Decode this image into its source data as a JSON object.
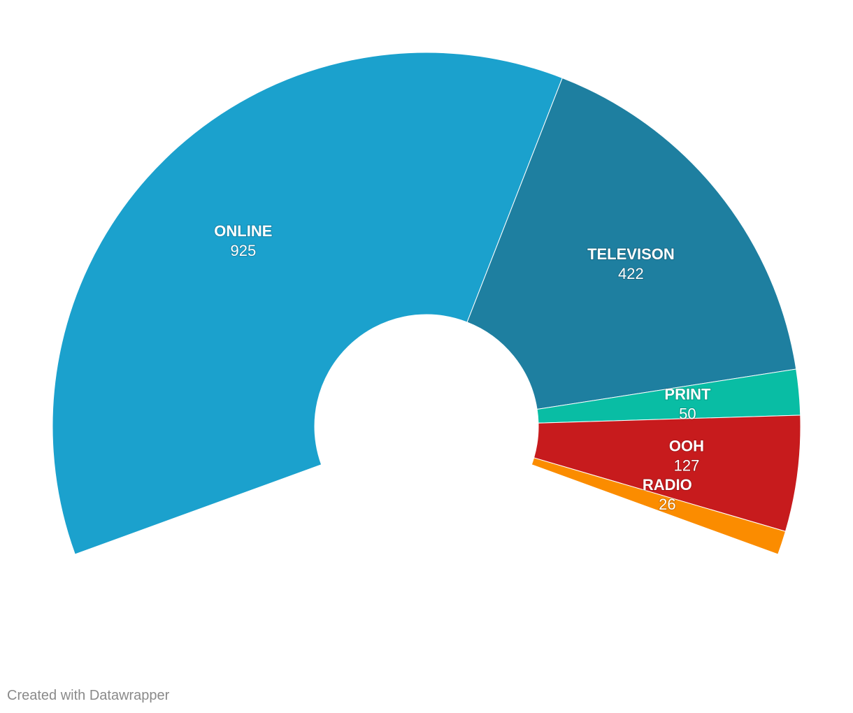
{
  "chart_data": {
    "type": "pie",
    "variant": "partial-donut",
    "title": "",
    "categories": [
      "ONLINE",
      "TELEVISON",
      "PRINT",
      "OOH",
      "RADIO"
    ],
    "values": [
      925,
      422,
      50,
      127,
      26
    ],
    "colors": [
      "#1ba1cd",
      "#1e7fa0",
      "#09bda4",
      "#c71b1d",
      "#fb8c00"
    ],
    "arc_start_deg": -110,
    "arc_end_deg": 110,
    "legend": "none",
    "labels_inside": true
  },
  "footer": {
    "credit": "Created with Datawrapper"
  }
}
